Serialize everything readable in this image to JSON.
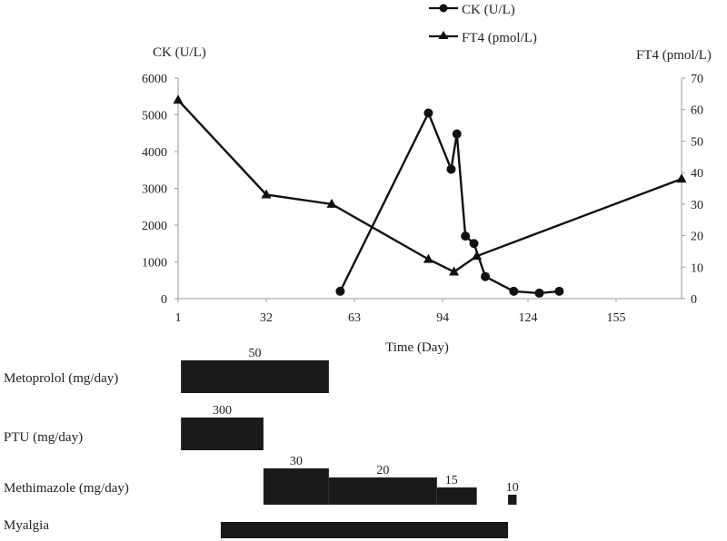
{
  "chart_data": {
    "type": "line",
    "xlabel": "Time (Day)",
    "ylabel_left": "CK (U/L)",
    "ylabel_right": "FT4 (pmol/L)",
    "x_ticks": [
      1,
      32,
      63,
      94,
      124,
      155
    ],
    "y_left_ticks": [
      0,
      1000,
      2000,
      3000,
      4000,
      5000,
      6000
    ],
    "y_right_ticks": [
      0,
      10,
      20,
      30,
      40,
      50,
      60,
      70
    ],
    "ylim_left": [
      0,
      6000
    ],
    "ylim_right": [
      0,
      70
    ],
    "xlim": [
      1,
      178
    ],
    "series": [
      {
        "name": "CK (U/L)",
        "axis": "left",
        "marker": "circle",
        "points": [
          [
            58,
            200
          ],
          [
            89,
            5050
          ],
          [
            97,
            3520
          ],
          [
            99,
            4480
          ],
          [
            102,
            1700
          ],
          [
            105,
            1500
          ],
          [
            109,
            600
          ],
          [
            119,
            200
          ],
          [
            128,
            150
          ],
          [
            135,
            200
          ]
        ]
      },
      {
        "name": "FT4 (pmol/L)",
        "axis": "right",
        "marker": "triangle",
        "points": [
          [
            1,
            63
          ],
          [
            32,
            33
          ],
          [
            55,
            30
          ],
          [
            89,
            12.5
          ],
          [
            98,
            8.5
          ],
          [
            106,
            13.5
          ],
          [
            178,
            38
          ]
        ]
      }
    ],
    "treatments": [
      {
        "label": "Metoprolol (mg/day)",
        "segments": [
          {
            "start": 2,
            "end": 54,
            "dose": "50"
          }
        ]
      },
      {
        "label": "PTU (mg/day)",
        "segments": [
          {
            "start": 2,
            "end": 31,
            "dose": "300"
          }
        ]
      },
      {
        "label": "Methimazole (mg/day)",
        "segments": [
          {
            "start": 31,
            "end": 54,
            "dose": "30"
          },
          {
            "start": 54,
            "end": 92,
            "dose": "20"
          },
          {
            "start": 92,
            "end": 106,
            "dose": "15"
          },
          {
            "start": 117,
            "end": 120,
            "dose": "10"
          }
        ]
      },
      {
        "label": "Myalgia",
        "segments": [
          {
            "start": 16,
            "end": 117,
            "dose": ""
          }
        ]
      }
    ]
  }
}
